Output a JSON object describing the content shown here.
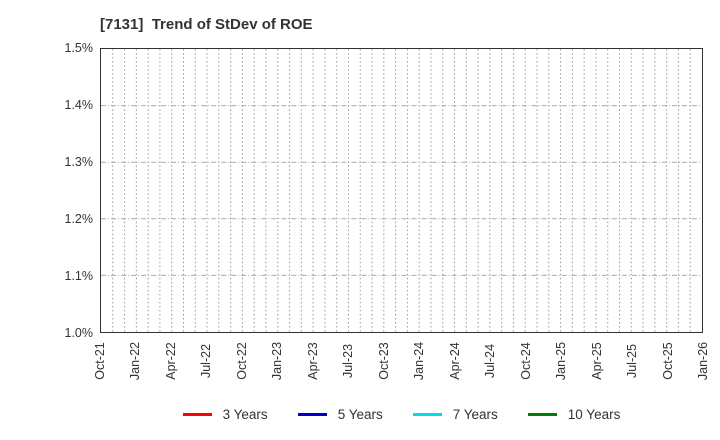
{
  "header": {
    "title": "[7131]  Trend of StDev of ROE"
  },
  "chart_data": {
    "type": "line",
    "title": "[7131]  Trend of StDev of ROE",
    "x_tick_labels": [
      "Oct-21",
      "Jan-22",
      "Apr-22",
      "Jul-22",
      "Oct-22",
      "Jan-23",
      "Apr-23",
      "Jul-23",
      "Oct-23",
      "Jan-24",
      "Apr-24",
      "Jul-24",
      "Oct-24",
      "Jan-25",
      "Apr-25",
      "Jul-25",
      "Oct-25",
      "Jan-26"
    ],
    "x_minor_intervals": 51,
    "y_tick_labels": [
      "1.0%",
      "1.1%",
      "1.2%",
      "1.3%",
      "1.4%",
      "1.5%"
    ],
    "ylim": [
      1.0,
      1.5
    ],
    "y_unit": "percent",
    "grid": true,
    "legend_position": "bottom-center",
    "series": [
      {
        "name": "3 Years",
        "color": "#ff0000",
        "values": []
      },
      {
        "name": "5 Years",
        "color": "#0000cc",
        "values": []
      },
      {
        "name": "7 Years",
        "color": "#00dce8",
        "values": []
      },
      {
        "name": "10 Years",
        "color": "#008000",
        "values": []
      }
    ],
    "plotted_data_visible": false,
    "colors": {
      "axis_border": "#333333",
      "grid_minor_vertical": "#999999",
      "grid_major_horizontal": "#aaaaaa",
      "text": "#333333"
    }
  }
}
